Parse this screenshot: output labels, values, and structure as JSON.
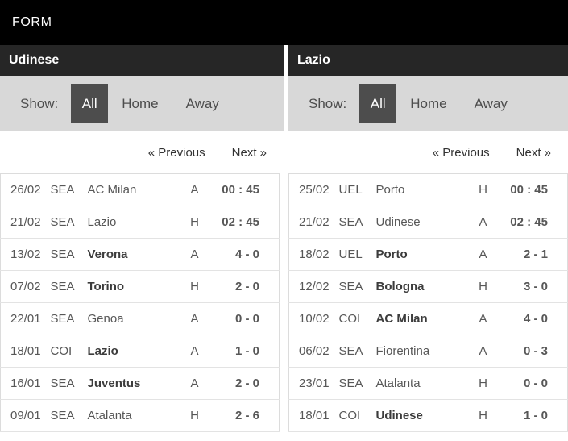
{
  "header": {
    "title": "FORM"
  },
  "colors": {
    "header_bg": "#000000",
    "team_bar_bg": "#262626",
    "filter_bar_bg": "#d8d8d8",
    "active_filter_bg": "#4d4d4d",
    "row_text": "#575757",
    "bold_text": "#3c3c3c"
  },
  "panels": [
    {
      "team": "Udinese",
      "show_label": "Show:",
      "filters": [
        {
          "label": "All",
          "active": true
        },
        {
          "label": "Home",
          "active": false
        },
        {
          "label": "Away",
          "active": false
        }
      ],
      "nav": {
        "previous": "« Previous",
        "next": "Next »"
      },
      "rows": [
        {
          "date": "26/02",
          "comp": "SEA",
          "team": "AC Milan",
          "team_bold": false,
          "venue": "A",
          "result": "00 : 45"
        },
        {
          "date": "21/02",
          "comp": "SEA",
          "team": "Lazio",
          "team_bold": false,
          "venue": "H",
          "result": "02 : 45"
        },
        {
          "date": "13/02",
          "comp": "SEA",
          "team": "Verona",
          "team_bold": true,
          "venue": "A",
          "result": "4 - 0"
        },
        {
          "date": "07/02",
          "comp": "SEA",
          "team": "Torino",
          "team_bold": true,
          "venue": "H",
          "result": "2 - 0"
        },
        {
          "date": "22/01",
          "comp": "SEA",
          "team": "Genoa",
          "team_bold": false,
          "venue": "A",
          "result": "0 - 0"
        },
        {
          "date": "18/01",
          "comp": "COI",
          "team": "Lazio",
          "team_bold": true,
          "venue": "A",
          "result": "1 - 0"
        },
        {
          "date": "16/01",
          "comp": "SEA",
          "team": "Juventus",
          "team_bold": true,
          "venue": "A",
          "result": "2 - 0"
        },
        {
          "date": "09/01",
          "comp": "SEA",
          "team": "Atalanta",
          "team_bold": false,
          "venue": "H",
          "result": "2 - 6"
        }
      ]
    },
    {
      "team": "Lazio",
      "show_label": "Show:",
      "filters": [
        {
          "label": "All",
          "active": true
        },
        {
          "label": "Home",
          "active": false
        },
        {
          "label": "Away",
          "active": false
        }
      ],
      "nav": {
        "previous": "« Previous",
        "next": "Next »"
      },
      "rows": [
        {
          "date": "25/02",
          "comp": "UEL",
          "team": "Porto",
          "team_bold": false,
          "venue": "H",
          "result": "00 : 45"
        },
        {
          "date": "21/02",
          "comp": "SEA",
          "team": "Udinese",
          "team_bold": false,
          "venue": "A",
          "result": "02 : 45"
        },
        {
          "date": "18/02",
          "comp": "UEL",
          "team": "Porto",
          "team_bold": true,
          "venue": "A",
          "result": "2 - 1"
        },
        {
          "date": "12/02",
          "comp": "SEA",
          "team": "Bologna",
          "team_bold": true,
          "venue": "H",
          "result": "3 - 0"
        },
        {
          "date": "10/02",
          "comp": "COI",
          "team": "AC Milan",
          "team_bold": true,
          "venue": "A",
          "result": "4 - 0"
        },
        {
          "date": "06/02",
          "comp": "SEA",
          "team": "Fiorentina",
          "team_bold": false,
          "venue": "A",
          "result": "0 - 3"
        },
        {
          "date": "23/01",
          "comp": "SEA",
          "team": "Atalanta",
          "team_bold": false,
          "venue": "H",
          "result": "0 - 0"
        },
        {
          "date": "18/01",
          "comp": "COI",
          "team": "Udinese",
          "team_bold": true,
          "venue": "H",
          "result": "1 - 0"
        }
      ]
    }
  ]
}
